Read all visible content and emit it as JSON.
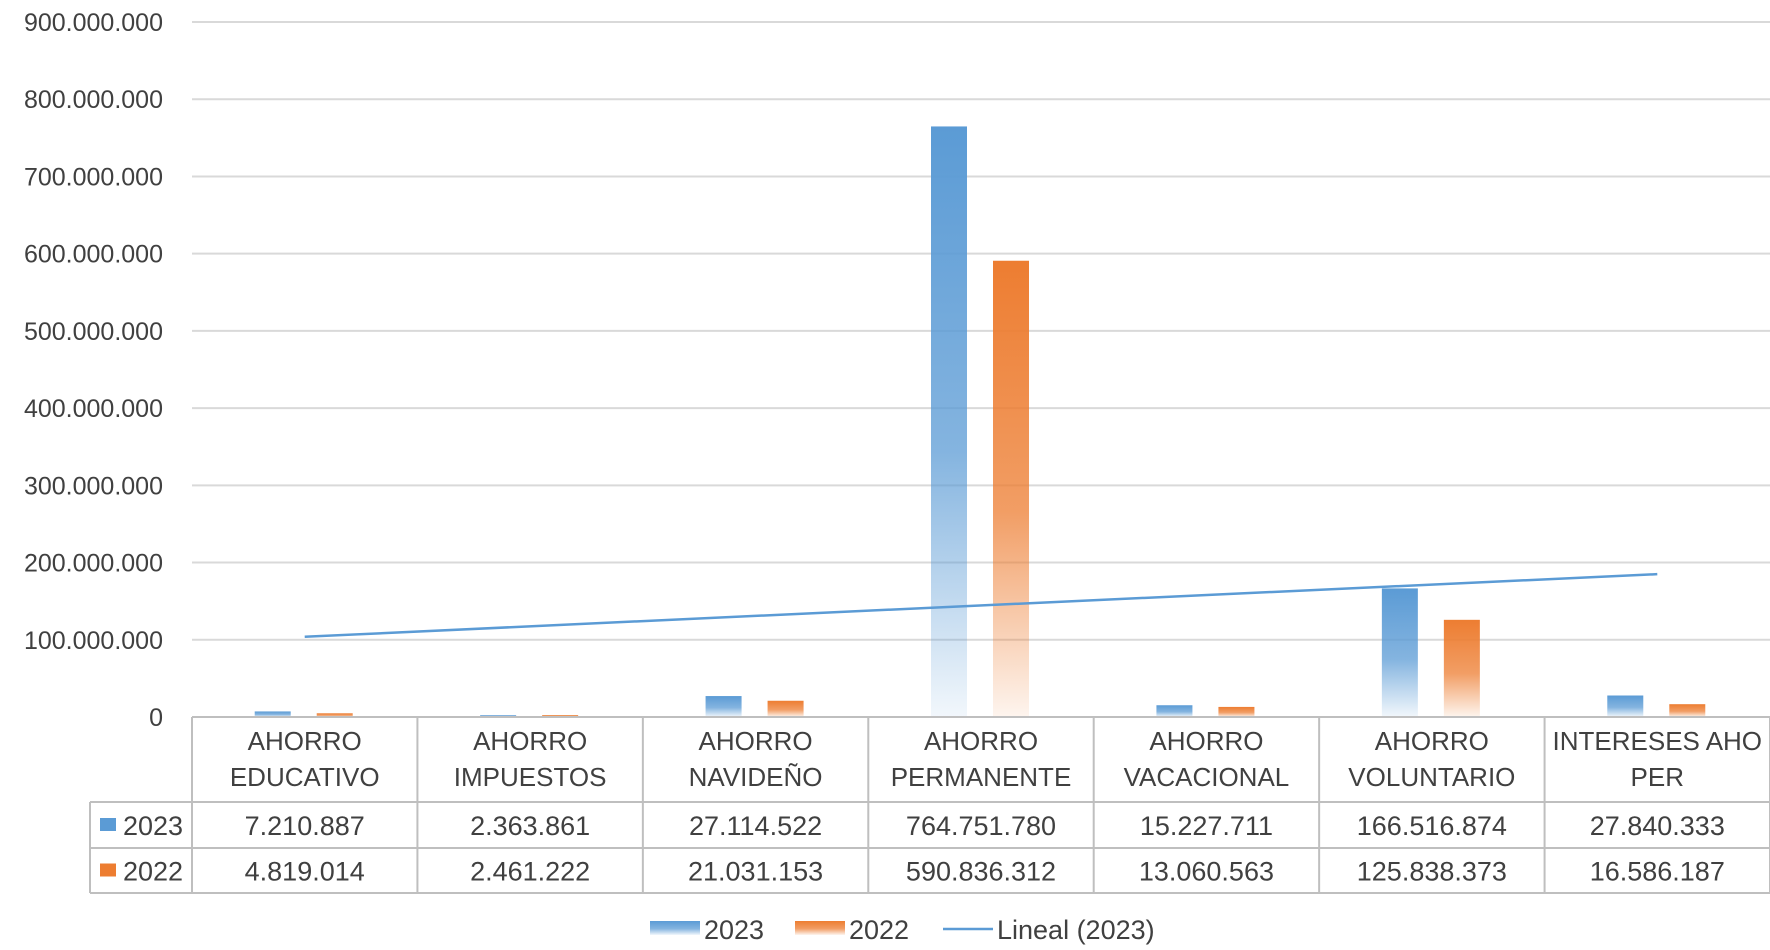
{
  "chart_data": {
    "type": "bar",
    "categories": [
      [
        "AHORRO",
        "EDUCATIVO"
      ],
      [
        "AHORRO",
        "IMPUESTOS"
      ],
      [
        "AHORRO",
        "NAVIDEÑO"
      ],
      [
        "AHORRO",
        "PERMANENTE"
      ],
      [
        "AHORRO",
        "VACACIONAL"
      ],
      [
        "AHORRO",
        "VOLUNTARIO"
      ],
      [
        "INTERESES AHO",
        "PER"
      ]
    ],
    "series": [
      {
        "name": "2023",
        "color": "#5B9BD5",
        "values": [
          7210887,
          2363861,
          27114522,
          764751780,
          15227711,
          166516874,
          27840333
        ],
        "display_values": [
          "7.210.887",
          "2.363.861",
          "27.114.522",
          "764.751.780",
          "15.227.711",
          "166.516.874",
          "27.840.333"
        ]
      },
      {
        "name": "2022",
        "color": "#ED7D31",
        "values": [
          4819014,
          2461222,
          21031153,
          590836312,
          13060563,
          125838373,
          16586187
        ],
        "display_values": [
          "4.819.014",
          "2.461.222",
          "21.031.153",
          "590.836.312",
          "13.060.563",
          "125.838.373",
          "16.586.187"
        ]
      }
    ],
    "trendline": {
      "name": "Lineal (2023)",
      "series": "2023",
      "type": "linear",
      "color": "#5B9BD5"
    },
    "ylim": [
      0,
      900000000
    ],
    "y_ticks": [
      0,
      100000000,
      200000000,
      300000000,
      400000000,
      500000000,
      600000000,
      700000000,
      800000000,
      900000000
    ],
    "y_tick_labels": [
      "0",
      "100.000.000",
      "200.000.000",
      "300.000.000",
      "400.000.000",
      "500.000.000",
      "600.000.000",
      "700.000.000",
      "800.000.000",
      "900.000.000"
    ],
    "grid": true,
    "legend_position": "bottom",
    "data_table": true
  }
}
